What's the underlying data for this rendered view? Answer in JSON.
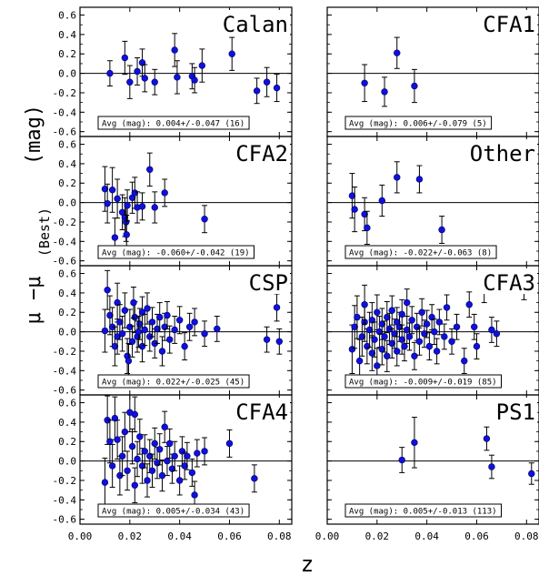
{
  "chart_data": {
    "type": "scatter",
    "xlabel": "z",
    "ylabel_prefix": "(mag)",
    "ylabel_main": "μ  −μ",
    "ylabel_sub": "(Best)",
    "xlim": [
      0,
      0.085
    ],
    "ylim": [
      -0.65,
      0.68
    ],
    "x_ticks": [
      "0.00",
      "0.02",
      "0.04",
      "0.06",
      "0.08"
    ],
    "x_tick_values": [
      0.0,
      0.02,
      0.04,
      0.06,
      0.08
    ],
    "y_ticks": [
      "0.6",
      "0.4",
      "0.2",
      "0.0",
      "-0.2",
      "-0.4",
      "-0.6"
    ],
    "y_tick_values": [
      0.6,
      0.4,
      0.2,
      0.0,
      -0.2,
      -0.4,
      -0.6
    ],
    "marker_color": "#1010dd",
    "panels": [
      {
        "name": "Calan",
        "avg": "Avg (mag): 0.004+/-0.047 (16)",
        "points": [
          {
            "x": 0.012,
            "y": 0.0,
            "err": 0.13
          },
          {
            "x": 0.018,
            "y": 0.16,
            "err": 0.17
          },
          {
            "x": 0.02,
            "y": -0.09,
            "err": 0.17
          },
          {
            "x": 0.023,
            "y": 0.02,
            "err": 0.14
          },
          {
            "x": 0.025,
            "y": 0.11,
            "err": 0.14
          },
          {
            "x": 0.026,
            "y": -0.05,
            "err": 0.14
          },
          {
            "x": 0.03,
            "y": -0.09,
            "err": 0.13
          },
          {
            "x": 0.038,
            "y": 0.24,
            "err": 0.17
          },
          {
            "x": 0.039,
            "y": -0.04,
            "err": 0.17
          },
          {
            "x": 0.045,
            "y": -0.03,
            "err": 0.13
          },
          {
            "x": 0.046,
            "y": -0.07,
            "err": 0.13
          },
          {
            "x": 0.049,
            "y": 0.08,
            "err": 0.17
          },
          {
            "x": 0.061,
            "y": 0.2,
            "err": 0.17
          },
          {
            "x": 0.071,
            "y": -0.18,
            "err": 0.13
          },
          {
            "x": 0.075,
            "y": -0.09,
            "err": 0.15
          },
          {
            "x": 0.079,
            "y": -0.15,
            "err": 0.14
          }
        ]
      },
      {
        "name": "CFA1",
        "avg": "Avg (mag): 0.006+/-0.079 (5)",
        "points": [
          {
            "x": 0.015,
            "y": -0.1,
            "err": 0.19
          },
          {
            "x": 0.023,
            "y": -0.19,
            "err": 0.15
          },
          {
            "x": 0.028,
            "y": 0.21,
            "err": 0.16
          },
          {
            "x": 0.035,
            "y": -0.13,
            "err": 0.17
          }
        ]
      },
      {
        "name": "CFA2",
        "avg": "Avg (mag): -0.060+/-0.042 (19)",
        "points": [
          {
            "x": 0.01,
            "y": 0.14,
            "err": 0.23
          },
          {
            "x": 0.011,
            "y": -0.01,
            "err": 0.2
          },
          {
            "x": 0.013,
            "y": 0.13,
            "err": 0.23
          },
          {
            "x": 0.014,
            "y": -0.36,
            "err": 0.2
          },
          {
            "x": 0.015,
            "y": 0.04,
            "err": 0.2
          },
          {
            "x": 0.017,
            "y": -0.1,
            "err": 0.18
          },
          {
            "x": 0.018,
            "y": -0.15,
            "err": 0.2
          },
          {
            "x": 0.0185,
            "y": -0.2,
            "err": 0.2
          },
          {
            "x": 0.0187,
            "y": -0.33,
            "err": 0.2
          },
          {
            "x": 0.019,
            "y": -0.03,
            "err": 0.16
          },
          {
            "x": 0.021,
            "y": 0.05,
            "err": 0.16
          },
          {
            "x": 0.022,
            "y": 0.1,
            "err": 0.16
          },
          {
            "x": 0.023,
            "y": -0.05,
            "err": 0.16
          },
          {
            "x": 0.025,
            "y": -0.04,
            "err": 0.14
          },
          {
            "x": 0.028,
            "y": 0.34,
            "err": 0.17
          },
          {
            "x": 0.03,
            "y": -0.05,
            "err": 0.16
          },
          {
            "x": 0.034,
            "y": 0.1,
            "err": 0.14
          },
          {
            "x": 0.05,
            "y": -0.17,
            "err": 0.14
          }
        ]
      },
      {
        "name": "Other",
        "avg": "Avg (mag): -0.022+/-0.063 (8)",
        "points": [
          {
            "x": 0.01,
            "y": 0.07,
            "err": 0.23
          },
          {
            "x": 0.011,
            "y": -0.07,
            "err": 0.23
          },
          {
            "x": 0.015,
            "y": -0.12,
            "err": 0.17
          },
          {
            "x": 0.016,
            "y": -0.26,
            "err": 0.17
          },
          {
            "x": 0.022,
            "y": 0.02,
            "err": 0.16
          },
          {
            "x": 0.028,
            "y": 0.26,
            "err": 0.16
          },
          {
            "x": 0.037,
            "y": 0.24,
            "err": 0.14
          },
          {
            "x": 0.046,
            "y": -0.28,
            "err": 0.14
          }
        ]
      },
      {
        "name": "CSP",
        "avg": "Avg (mag): 0.022+/-0.025 (45)",
        "points": [
          {
            "x": 0.01,
            "y": 0.01,
            "err": 0.22
          },
          {
            "x": 0.011,
            "y": 0.43,
            "err": 0.2
          },
          {
            "x": 0.012,
            "y": 0.17,
            "err": 0.2
          },
          {
            "x": 0.013,
            "y": 0.05,
            "err": 0.2
          },
          {
            "x": 0.014,
            "y": -0.15,
            "err": 0.2
          },
          {
            "x": 0.015,
            "y": 0.3,
            "err": 0.2
          },
          {
            "x": 0.015,
            "y": -0.05,
            "err": 0.18
          },
          {
            "x": 0.016,
            "y": 0.1,
            "err": 0.18
          },
          {
            "x": 0.017,
            "y": -0.02,
            "err": 0.18
          },
          {
            "x": 0.018,
            "y": 0.22,
            "err": 0.18
          },
          {
            "x": 0.019,
            "y": -0.25,
            "err": 0.18
          },
          {
            "x": 0.02,
            "y": 0.05,
            "err": 0.18
          },
          {
            "x": 0.021,
            "y": -0.1,
            "err": 0.16
          },
          {
            "x": 0.022,
            "y": 0.15,
            "err": 0.16
          },
          {
            "x": 0.023,
            "y": -0.05,
            "err": 0.16
          },
          {
            "x": 0.024,
            "y": 0.08,
            "err": 0.16
          },
          {
            "x": 0.025,
            "y": -0.15,
            "err": 0.16
          },
          {
            "x": 0.025,
            "y": 0.2,
            "err": 0.16
          },
          {
            "x": 0.026,
            "y": 0.02,
            "err": 0.16
          },
          {
            "x": 0.027,
            "y": 0.24,
            "err": 0.16
          },
          {
            "x": 0.028,
            "y": -0.05,
            "err": 0.15
          },
          {
            "x": 0.029,
            "y": 0.1,
            "err": 0.15
          },
          {
            "x": 0.03,
            "y": -0.12,
            "err": 0.15
          },
          {
            "x": 0.031,
            "y": 0.03,
            "err": 0.15
          },
          {
            "x": 0.032,
            "y": 0.15,
            "err": 0.15
          },
          {
            "x": 0.033,
            "y": -0.2,
            "err": 0.15
          },
          {
            "x": 0.034,
            "y": 0.05,
            "err": 0.14
          },
          {
            "x": 0.035,
            "y": 0.17,
            "err": 0.14
          },
          {
            "x": 0.036,
            "y": -0.08,
            "err": 0.14
          },
          {
            "x": 0.038,
            "y": 0.02,
            "err": 0.14
          },
          {
            "x": 0.04,
            "y": 0.12,
            "err": 0.14
          },
          {
            "x": 0.042,
            "y": -0.15,
            "err": 0.14
          },
          {
            "x": 0.044,
            "y": 0.05,
            "err": 0.14
          },
          {
            "x": 0.046,
            "y": 0.1,
            "err": 0.14
          },
          {
            "x": 0.05,
            "y": -0.02,
            "err": 0.13
          },
          {
            "x": 0.055,
            "y": 0.03,
            "err": 0.13
          },
          {
            "x": 0.075,
            "y": -0.08,
            "err": 0.13
          },
          {
            "x": 0.079,
            "y": 0.25,
            "err": 0.14
          },
          {
            "x": 0.08,
            "y": -0.1,
            "err": 0.13
          },
          {
            "x": 0.0195,
            "y": -0.3,
            "err": 0.18
          },
          {
            "x": 0.0215,
            "y": 0.3,
            "err": 0.16
          },
          {
            "x": 0.0235,
            "y": 0.0,
            "err": 0.16
          }
        ]
      },
      {
        "name": "CFA3",
        "avg": "Avg (mag): -0.009+/-0.019 (85)",
        "points": [
          {
            "x": 0.01,
            "y": -0.18,
            "err": 0.25
          },
          {
            "x": 0.011,
            "y": 0.05,
            "err": 0.22
          },
          {
            "x": 0.012,
            "y": 0.15,
            "err": 0.22
          },
          {
            "x": 0.013,
            "y": -0.3,
            "err": 0.22
          },
          {
            "x": 0.014,
            "y": -0.05,
            "err": 0.2
          },
          {
            "x": 0.015,
            "y": 0.1,
            "err": 0.2
          },
          {
            "x": 0.015,
            "y": 0.28,
            "err": 0.2
          },
          {
            "x": 0.016,
            "y": -0.15,
            "err": 0.18
          },
          {
            "x": 0.017,
            "y": 0.02,
            "err": 0.18
          },
          {
            "x": 0.018,
            "y": -0.22,
            "err": 0.18
          },
          {
            "x": 0.018,
            "y": 0.12,
            "err": 0.18
          },
          {
            "x": 0.019,
            "y": -0.08,
            "err": 0.18
          },
          {
            "x": 0.02,
            "y": 0.2,
            "err": 0.18
          },
          {
            "x": 0.02,
            "y": -0.35,
            "err": 0.18
          },
          {
            "x": 0.021,
            "y": 0.0,
            "err": 0.16
          },
          {
            "x": 0.022,
            "y": -0.18,
            "err": 0.16
          },
          {
            "x": 0.022,
            "y": 0.08,
            "err": 0.16
          },
          {
            "x": 0.023,
            "y": -0.05,
            "err": 0.16
          },
          {
            "x": 0.024,
            "y": 0.15,
            "err": 0.16
          },
          {
            "x": 0.024,
            "y": -0.25,
            "err": 0.16
          },
          {
            "x": 0.025,
            "y": 0.03,
            "err": 0.16
          },
          {
            "x": 0.026,
            "y": -0.12,
            "err": 0.15
          },
          {
            "x": 0.026,
            "y": 0.22,
            "err": 0.15
          },
          {
            "x": 0.027,
            "y": -0.02,
            "err": 0.15
          },
          {
            "x": 0.028,
            "y": 0.1,
            "err": 0.15
          },
          {
            "x": 0.028,
            "y": -0.2,
            "err": 0.15
          },
          {
            "x": 0.029,
            "y": 0.05,
            "err": 0.15
          },
          {
            "x": 0.03,
            "y": -0.08,
            "err": 0.15
          },
          {
            "x": 0.03,
            "y": 0.18,
            "err": 0.15
          },
          {
            "x": 0.031,
            "y": -0.15,
            "err": 0.15
          },
          {
            "x": 0.032,
            "y": 0.02,
            "err": 0.14
          },
          {
            "x": 0.032,
            "y": 0.3,
            "err": 0.14
          },
          {
            "x": 0.033,
            "y": -0.05,
            "err": 0.14
          },
          {
            "x": 0.034,
            "y": 0.12,
            "err": 0.14
          },
          {
            "x": 0.035,
            "y": -0.25,
            "err": 0.14
          },
          {
            "x": 0.036,
            "y": 0.05,
            "err": 0.14
          },
          {
            "x": 0.037,
            "y": -0.1,
            "err": 0.14
          },
          {
            "x": 0.038,
            "y": 0.2,
            "err": 0.14
          },
          {
            "x": 0.039,
            "y": -0.02,
            "err": 0.14
          },
          {
            "x": 0.04,
            "y": 0.08,
            "err": 0.14
          },
          {
            "x": 0.041,
            "y": -0.15,
            "err": 0.14
          },
          {
            "x": 0.042,
            "y": 0.15,
            "err": 0.13
          },
          {
            "x": 0.043,
            "y": 0.0,
            "err": 0.13
          },
          {
            "x": 0.044,
            "y": -0.2,
            "err": 0.13
          },
          {
            "x": 0.045,
            "y": 0.1,
            "err": 0.13
          },
          {
            "x": 0.047,
            "y": -0.05,
            "err": 0.13
          },
          {
            "x": 0.048,
            "y": 0.25,
            "err": 0.13
          },
          {
            "x": 0.05,
            "y": -0.1,
            "err": 0.13
          },
          {
            "x": 0.052,
            "y": 0.05,
            "err": 0.13
          },
          {
            "x": 0.055,
            "y": -0.3,
            "err": 0.13
          },
          {
            "x": 0.057,
            "y": 0.28,
            "err": 0.13
          },
          {
            "x": 0.059,
            "y": 0.05,
            "err": 0.13
          },
          {
            "x": 0.06,
            "y": -0.15,
            "err": 0.13
          },
          {
            "x": 0.063,
            "y": 0.45,
            "err": 0.15
          },
          {
            "x": 0.066,
            "y": 0.02,
            "err": 0.13
          },
          {
            "x": 0.068,
            "y": -0.02,
            "err": 0.13
          },
          {
            "x": 0.079,
            "y": 0.48,
            "err": 0.15
          }
        ]
      },
      {
        "name": "CFA4",
        "avg": "Avg (mag): 0.005+/-0.034 (43)",
        "points": [
          {
            "x": 0.01,
            "y": -0.22,
            "err": 0.25
          },
          {
            "x": 0.011,
            "y": 0.42,
            "err": 0.25
          },
          {
            "x": 0.012,
            "y": 0.2,
            "err": 0.22
          },
          {
            "x": 0.013,
            "y": -0.05,
            "err": 0.22
          },
          {
            "x": 0.014,
            "y": 0.44,
            "err": 0.22
          },
          {
            "x": 0.015,
            "y": 0.22,
            "err": 0.2
          },
          {
            "x": 0.016,
            "y": -0.15,
            "err": 0.2
          },
          {
            "x": 0.017,
            "y": 0.05,
            "err": 0.2
          },
          {
            "x": 0.018,
            "y": 0.3,
            "err": 0.2
          },
          {
            "x": 0.019,
            "y": -0.1,
            "err": 0.2
          },
          {
            "x": 0.02,
            "y": 0.5,
            "err": 0.2
          },
          {
            "x": 0.021,
            "y": 0.15,
            "err": 0.18
          },
          {
            "x": 0.022,
            "y": -0.25,
            "err": 0.18
          },
          {
            "x": 0.022,
            "y": 0.48,
            "err": 0.18
          },
          {
            "x": 0.023,
            "y": 0.02,
            "err": 0.18
          },
          {
            "x": 0.024,
            "y": 0.25,
            "err": 0.18
          },
          {
            "x": 0.025,
            "y": -0.05,
            "err": 0.18
          },
          {
            "x": 0.026,
            "y": 0.1,
            "err": 0.17
          },
          {
            "x": 0.027,
            "y": -0.2,
            "err": 0.17
          },
          {
            "x": 0.028,
            "y": 0.05,
            "err": 0.17
          },
          {
            "x": 0.029,
            "y": -0.1,
            "err": 0.17
          },
          {
            "x": 0.03,
            "y": 0.18,
            "err": 0.16
          },
          {
            "x": 0.031,
            "y": -0.02,
            "err": 0.16
          },
          {
            "x": 0.032,
            "y": 0.12,
            "err": 0.16
          },
          {
            "x": 0.033,
            "y": -0.15,
            "err": 0.16
          },
          {
            "x": 0.034,
            "y": 0.35,
            "err": 0.16
          },
          {
            "x": 0.035,
            "y": 0.0,
            "err": 0.15
          },
          {
            "x": 0.036,
            "y": 0.18,
            "err": 0.15
          },
          {
            "x": 0.037,
            "y": -0.08,
            "err": 0.15
          },
          {
            "x": 0.038,
            "y": 0.05,
            "err": 0.15
          },
          {
            "x": 0.04,
            "y": -0.2,
            "err": 0.15
          },
          {
            "x": 0.041,
            "y": 0.1,
            "err": 0.15
          },
          {
            "x": 0.042,
            "y": -0.05,
            "err": 0.14
          },
          {
            "x": 0.043,
            "y": 0.05,
            "err": 0.14
          },
          {
            "x": 0.045,
            "y": -0.12,
            "err": 0.14
          },
          {
            "x": 0.046,
            "y": -0.35,
            "err": 0.14
          },
          {
            "x": 0.047,
            "y": 0.08,
            "err": 0.14
          },
          {
            "x": 0.05,
            "y": 0.1,
            "err": 0.14
          },
          {
            "x": 0.06,
            "y": 0.18,
            "err": 0.14
          },
          {
            "x": 0.07,
            "y": -0.18,
            "err": 0.14
          }
        ]
      },
      {
        "name": "PS1",
        "avg": "Avg (mag): 0.005+/-0.013 (113)",
        "points": [
          {
            "x": 0.03,
            "y": 0.01,
            "err": 0.13
          },
          {
            "x": 0.035,
            "y": 0.19,
            "err": 0.26
          },
          {
            "x": 0.064,
            "y": 0.23,
            "err": 0.12
          },
          {
            "x": 0.066,
            "y": -0.06,
            "err": 0.12
          },
          {
            "x": 0.082,
            "y": -0.13,
            "err": 0.11
          }
        ]
      }
    ]
  }
}
